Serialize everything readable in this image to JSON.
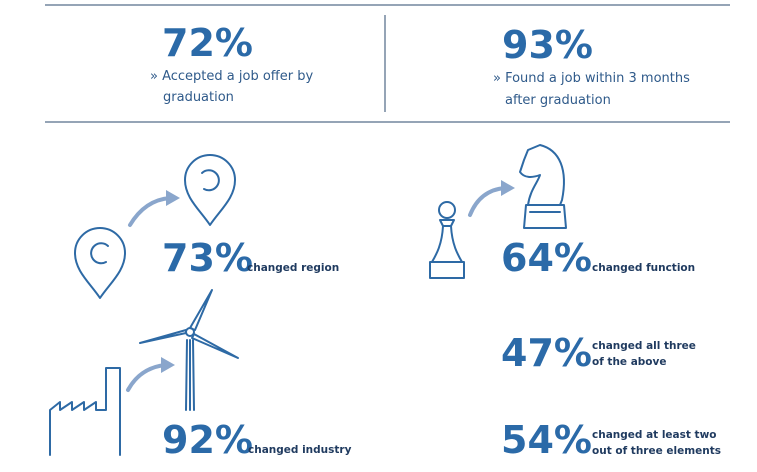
{
  "top_stats": [
    {
      "value": "72%",
      "lines": [
        "» Accepted a job offer by",
        "graduation"
      ]
    },
    {
      "value": "93%",
      "lines": [
        "» Found a job within 3 months",
        "after graduation"
      ]
    }
  ],
  "changes": [
    {
      "value": "73%",
      "lines": [
        "changed region"
      ]
    },
    {
      "value": "64%",
      "lines": [
        "changed function"
      ]
    },
    {
      "value": "47%",
      "lines": [
        "changed all three",
        "of the above"
      ]
    },
    {
      "value": "92%",
      "lines": [
        "changed industry"
      ]
    },
    {
      "value": "54%",
      "lines": [
        "changed at least two",
        "out of three elements"
      ]
    }
  ]
}
